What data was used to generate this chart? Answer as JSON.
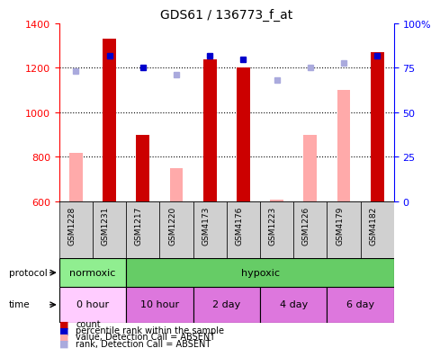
{
  "title": "GDS61 / 136773_f_at",
  "samples": [
    "GSM1228",
    "GSM1231",
    "GSM1217",
    "GSM1220",
    "GSM4173",
    "GSM4176",
    "GSM1223",
    "GSM1226",
    "GSM4179",
    "GSM4182"
  ],
  "count_values": [
    null,
    1330,
    900,
    null,
    1240,
    1200,
    null,
    null,
    null,
    1270
  ],
  "count_absent": [
    820,
    null,
    null,
    750,
    null,
    null,
    610,
    900,
    1100,
    null
  ],
  "rank_values": [
    null,
    82,
    75,
    null,
    82,
    80,
    null,
    null,
    null,
    82
  ],
  "rank_absent": [
    73,
    null,
    null,
    71,
    null,
    null,
    68,
    75,
    78,
    null
  ],
  "ylim_left": [
    600,
    1400
  ],
  "ylim_right": [
    0,
    100
  ],
  "yticks_left": [
    600,
    800,
    1000,
    1200,
    1400
  ],
  "yticks_right": [
    0,
    25,
    50,
    75,
    100
  ],
  "ytick_labels_right": [
    "0",
    "25",
    "50",
    "75",
    "100%"
  ],
  "bar_width": 0.4,
  "color_count": "#cc0000",
  "color_count_absent": "#ffaaaa",
  "color_rank": "#0000cc",
  "color_rank_absent": "#aaaadd",
  "normoxic_color": "#90ee90",
  "hypoxic_color": "#66cc66",
  "time_color_0": "#ffccff",
  "time_color_rest": "#dd77dd",
  "sample_bg_color": "#d0d0d0",
  "dotted_grid_ticks": [
    800,
    1000,
    1200
  ],
  "protocol_label": "protocol",
  "time_label": "time",
  "normoxic_label": "normoxic",
  "hypoxic_label": "hypoxic",
  "time_labels": [
    "0 hour",
    "10 hour",
    "2 day",
    "4 day",
    "6 day"
  ],
  "legend_items": [
    {
      "color": "#cc0000",
      "label": "count"
    },
    {
      "color": "#0000cc",
      "label": "percentile rank within the sample"
    },
    {
      "color": "#ffaaaa",
      "label": "value, Detection Call = ABSENT"
    },
    {
      "color": "#aaaadd",
      "label": "rank, Detection Call = ABSENT"
    }
  ]
}
